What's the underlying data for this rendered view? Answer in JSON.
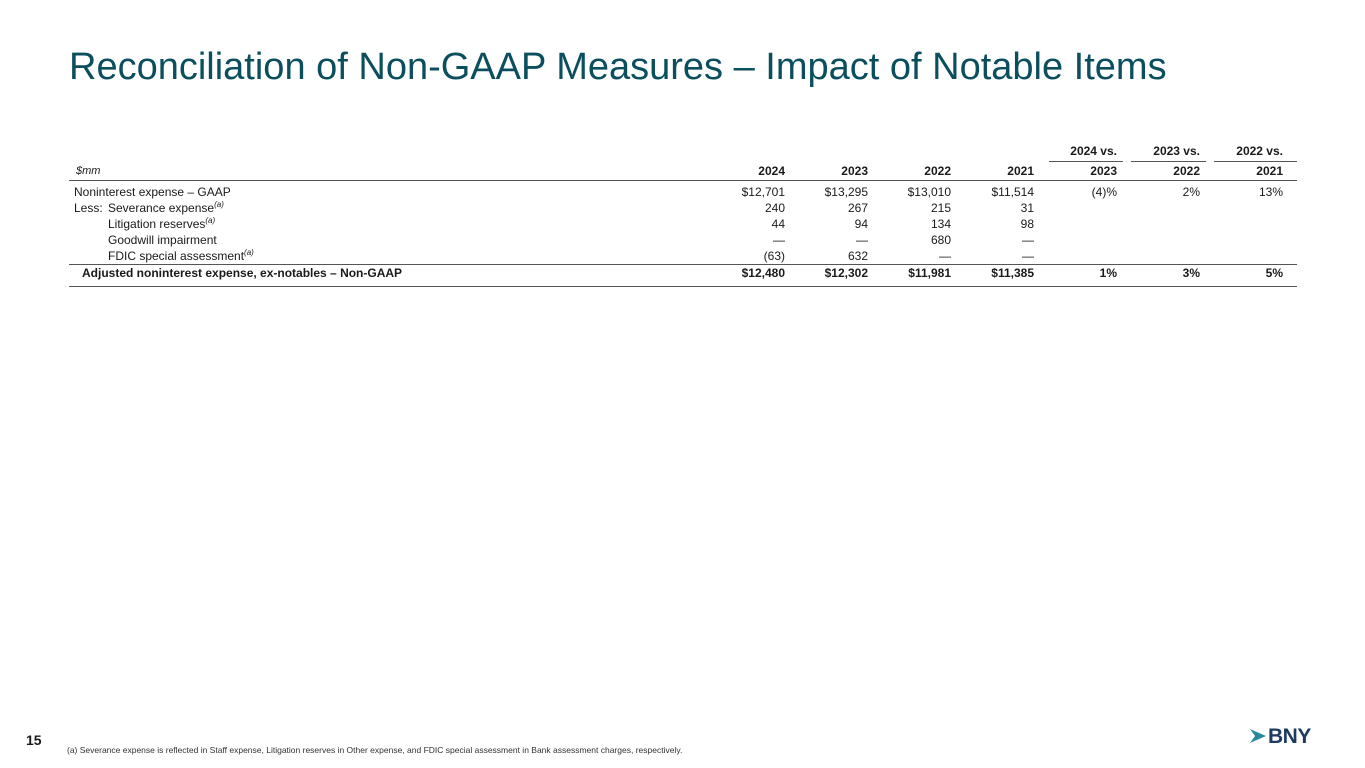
{
  "title": "Reconciliation of Non-GAAP Measures – Impact of Notable Items",
  "table": {
    "unit_label": "$mm",
    "header_top": [
      "2024 vs.",
      "2023 vs.",
      "2022 vs."
    ],
    "header_years": [
      "2024",
      "2023",
      "2022",
      "2021",
      "2023",
      "2022",
      "2021"
    ],
    "rows": [
      {
        "prefix": "",
        "label": "Noninterest expense – GAAP",
        "note": "",
        "values": [
          "$12,701",
          "$13,295",
          "$13,010",
          "$11,514",
          "(4)%",
          "2%",
          "13%"
        ]
      },
      {
        "prefix": "Less:",
        "label": "Severance expense",
        "note": "(a)",
        "values": [
          "240",
          "267",
          "215",
          "31",
          "",
          "",
          ""
        ]
      },
      {
        "prefix": "",
        "label": "Litigation reserves",
        "note": "(a)",
        "values": [
          "44",
          "94",
          "134",
          "98",
          "",
          "",
          ""
        ]
      },
      {
        "prefix": "",
        "label": "Goodwill impairment",
        "note": "",
        "values": [
          "—",
          "—",
          "680",
          "—",
          "",
          "",
          ""
        ]
      },
      {
        "prefix": "",
        "label": "FDIC special assessment",
        "note": "(a)",
        "values": [
          "(63)",
          "632",
          "—",
          "—",
          "",
          "",
          ""
        ]
      }
    ],
    "total": {
      "label": "Adjusted noninterest expense, ex-notables – Non-GAAP",
      "values": [
        "$12,480",
        "$12,302",
        "$11,981",
        "$11,385",
        "1%",
        "3%",
        "5%"
      ]
    }
  },
  "footnote": "(a) Severance expense is reflected in Staff expense, Litigation reserves in Other expense, and FDIC special assessment in Bank assessment charges, respectively.",
  "page_number": "15",
  "logo": {
    "text": "BNY",
    "mark_color": "#2a8a9a",
    "text_color": "#1e3a5f"
  },
  "colors": {
    "title": "#0b4f5e"
  }
}
